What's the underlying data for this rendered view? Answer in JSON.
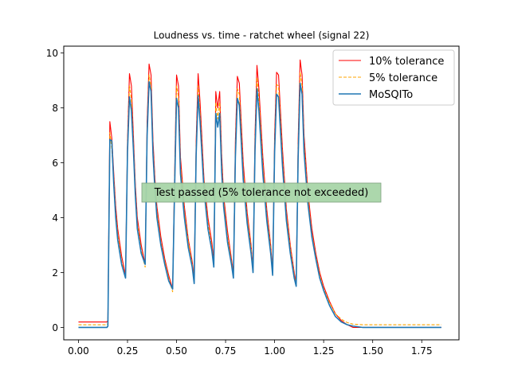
{
  "chart_data": {
    "type": "line",
    "title": "Loudness vs. time - ratchet wheel  (signal 22)",
    "xlabel": "",
    "ylabel": "",
    "xlim": [
      -0.075,
      1.94
    ],
    "ylim": [
      -0.45,
      10.25
    ],
    "xticks": [
      "0.00",
      "0.25",
      "0.50",
      "0.75",
      "1.00",
      "1.25",
      "1.50",
      "1.75"
    ],
    "yticks": [
      "0",
      "2",
      "4",
      "6",
      "8",
      "10"
    ],
    "grid": false,
    "legend_position": "upper right",
    "annotation": "Test passed (5% tolerance not exceeded)",
    "series": [
      {
        "name": "10% tolerance",
        "color": "#ff0000",
        "dash": "solid",
        "x": [
          0.0,
          0.145,
          0.15,
          0.16,
          0.17,
          0.18,
          0.19,
          0.2,
          0.22,
          0.24,
          0.25,
          0.26,
          0.27,
          0.28,
          0.29,
          0.3,
          0.32,
          0.34,
          0.35,
          0.36,
          0.37,
          0.38,
          0.39,
          0.4,
          0.42,
          0.44,
          0.46,
          0.48,
          0.49,
          0.5,
          0.51,
          0.52,
          0.54,
          0.56,
          0.58,
          0.59,
          0.6,
          0.61,
          0.62,
          0.64,
          0.66,
          0.68,
          0.69,
          0.7,
          0.71,
          0.72,
          0.73,
          0.74,
          0.76,
          0.78,
          0.79,
          0.8,
          0.81,
          0.82,
          0.84,
          0.86,
          0.88,
          0.89,
          0.9,
          0.91,
          0.92,
          0.94,
          0.96,
          0.98,
          0.99,
          1.0,
          1.01,
          1.02,
          1.04,
          1.06,
          1.08,
          1.1,
          1.11,
          1.12,
          1.13,
          1.14,
          1.15,
          1.17,
          1.19,
          1.21,
          1.23,
          1.25,
          1.28,
          1.31,
          1.34,
          1.37,
          1.4,
          1.45,
          1.5,
          1.6,
          1.7,
          1.85
        ],
        "y": [
          0.2,
          0.2,
          0.25,
          7.5,
          6.9,
          5.6,
          4.4,
          3.6,
          2.6,
          1.9,
          6.8,
          9.25,
          8.8,
          7.0,
          5.2,
          4.0,
          3.0,
          2.3,
          7.5,
          9.6,
          9.2,
          6.8,
          5.4,
          4.4,
          3.3,
          2.5,
          1.9,
          1.4,
          5.5,
          9.2,
          8.8,
          6.2,
          4.4,
          3.2,
          2.4,
          1.8,
          6.8,
          9.25,
          8.2,
          5.4,
          4.0,
          3.1,
          2.4,
          8.6,
          8.0,
          8.6,
          6.3,
          4.8,
          3.5,
          2.5,
          2.0,
          6.8,
          9.15,
          8.9,
          6.0,
          4.2,
          3.0,
          2.1,
          7.0,
          9.55,
          8.7,
          6.2,
          4.3,
          3.0,
          2.0,
          7.0,
          9.3,
          9.2,
          6.5,
          4.3,
          3.0,
          2.0,
          1.6,
          6.8,
          9.75,
          9.2,
          7.0,
          4.9,
          3.6,
          2.7,
          2.0,
          1.5,
          0.95,
          0.5,
          0.25,
          0.1,
          0.0,
          0.0,
          0.0,
          0.0,
          0.0,
          0.0
        ]
      },
      {
        "name": "5% tolerance",
        "color": "#ffa500",
        "dash": "dashed",
        "x": [
          0.0,
          0.145,
          0.15,
          0.16,
          0.17,
          0.18,
          0.19,
          0.2,
          0.22,
          0.24,
          0.25,
          0.26,
          0.27,
          0.28,
          0.29,
          0.3,
          0.32,
          0.34,
          0.35,
          0.36,
          0.37,
          0.38,
          0.39,
          0.4,
          0.42,
          0.44,
          0.46,
          0.48,
          0.49,
          0.5,
          0.51,
          0.52,
          0.54,
          0.56,
          0.58,
          0.59,
          0.6,
          0.61,
          0.62,
          0.64,
          0.66,
          0.68,
          0.69,
          0.7,
          0.71,
          0.72,
          0.73,
          0.74,
          0.76,
          0.78,
          0.79,
          0.8,
          0.81,
          0.82,
          0.84,
          0.86,
          0.88,
          0.89,
          0.9,
          0.91,
          0.92,
          0.94,
          0.96,
          0.98,
          0.99,
          1.0,
          1.01,
          1.02,
          1.04,
          1.06,
          1.08,
          1.1,
          1.11,
          1.12,
          1.13,
          1.14,
          1.15,
          1.17,
          1.19,
          1.21,
          1.23,
          1.25,
          1.28,
          1.31,
          1.34,
          1.37,
          1.4,
          1.45,
          1.5,
          1.6,
          1.7,
          1.85
        ],
        "y": [
          0.1,
          0.1,
          0.15,
          7.1,
          6.5,
          5.4,
          4.2,
          3.4,
          2.4,
          1.8,
          6.6,
          8.8,
          8.3,
          6.7,
          5.0,
          3.8,
          2.8,
          2.2,
          7.2,
          9.2,
          8.8,
          6.5,
          5.2,
          4.2,
          3.1,
          2.4,
          1.8,
          1.3,
          5.3,
          8.8,
          8.4,
          5.9,
          4.2,
          3.1,
          2.3,
          1.7,
          6.5,
          8.8,
          7.8,
          5.2,
          3.8,
          2.9,
          2.3,
          8.2,
          7.6,
          8.2,
          6.0,
          4.6,
          3.3,
          2.4,
          1.9,
          6.5,
          8.7,
          8.5,
          5.7,
          4.0,
          2.9,
          2.0,
          6.7,
          9.1,
          8.3,
          5.9,
          4.1,
          2.9,
          1.9,
          6.7,
          8.85,
          8.8,
          6.2,
          4.1,
          2.9,
          1.9,
          1.5,
          6.5,
          9.3,
          8.8,
          6.7,
          4.7,
          3.4,
          2.6,
          1.9,
          1.4,
          0.9,
          0.5,
          0.3,
          0.18,
          0.12,
          0.1,
          0.1,
          0.1,
          0.1,
          0.1
        ]
      },
      {
        "name": "MoSQITo",
        "color": "#1f77b4",
        "dash": "solid",
        "x": [
          0.0,
          0.145,
          0.15,
          0.16,
          0.17,
          0.18,
          0.19,
          0.2,
          0.22,
          0.24,
          0.25,
          0.26,
          0.27,
          0.28,
          0.29,
          0.3,
          0.32,
          0.34,
          0.35,
          0.36,
          0.37,
          0.38,
          0.39,
          0.4,
          0.42,
          0.44,
          0.46,
          0.48,
          0.49,
          0.5,
          0.51,
          0.52,
          0.54,
          0.56,
          0.58,
          0.59,
          0.6,
          0.61,
          0.62,
          0.64,
          0.66,
          0.68,
          0.69,
          0.7,
          0.71,
          0.72,
          0.73,
          0.74,
          0.76,
          0.78,
          0.79,
          0.8,
          0.81,
          0.82,
          0.84,
          0.86,
          0.88,
          0.89,
          0.9,
          0.91,
          0.92,
          0.94,
          0.96,
          0.98,
          0.99,
          1.0,
          1.01,
          1.02,
          1.04,
          1.06,
          1.08,
          1.1,
          1.11,
          1.12,
          1.13,
          1.14,
          1.15,
          1.17,
          1.19,
          1.21,
          1.23,
          1.25,
          1.28,
          1.31,
          1.34,
          1.37,
          1.4,
          1.45,
          1.5,
          1.6,
          1.7,
          1.85
        ],
        "y": [
          0.0,
          0.0,
          0.05,
          6.85,
          6.8,
          5.2,
          4.0,
          3.2,
          2.3,
          1.8,
          6.4,
          8.4,
          7.9,
          6.5,
          4.8,
          3.6,
          2.7,
          2.3,
          7.0,
          8.95,
          8.6,
          6.3,
          5.0,
          4.0,
          3.0,
          2.3,
          1.7,
          1.4,
          5.0,
          8.35,
          8.0,
          5.6,
          4.0,
          2.9,
          2.2,
          1.6,
          6.3,
          8.45,
          7.5,
          5.0,
          3.6,
          2.8,
          2.2,
          7.8,
          7.3,
          7.8,
          5.7,
          4.4,
          3.1,
          2.3,
          1.8,
          6.2,
          8.35,
          8.1,
          5.4,
          3.8,
          2.7,
          2.0,
          6.4,
          8.7,
          7.9,
          5.6,
          3.9,
          2.7,
          1.9,
          6.4,
          8.5,
          8.4,
          5.9,
          3.9,
          2.7,
          1.8,
          1.5,
          6.2,
          8.9,
          8.5,
          6.4,
          4.5,
          3.3,
          2.5,
          1.8,
          1.35,
          0.8,
          0.4,
          0.2,
          0.1,
          0.05,
          0.0,
          0.0,
          0.0,
          0.0,
          0.0
        ]
      }
    ]
  }
}
